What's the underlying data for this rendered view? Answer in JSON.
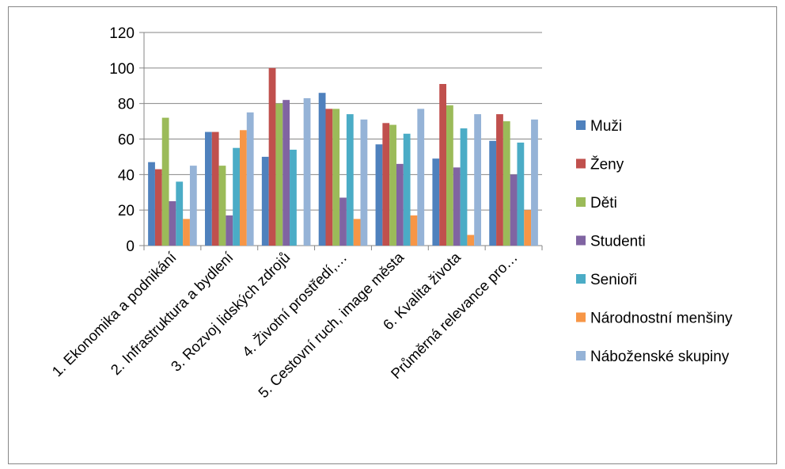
{
  "chart_data": {
    "type": "bar",
    "categories": [
      "1. Ekonomika a podnikání",
      "2. Infrastruktura a bydlení",
      "3. Rozvoj lidských zdrojů",
      "4. Životní prostředí,…",
      "5. Cestovní ruch, image města",
      "6. Kvalita života",
      "Průměrná relevance pro…"
    ],
    "series": [
      {
        "name": "Muži",
        "color": "#4F81BD",
        "values": [
          47,
          64,
          50,
          86,
          57,
          49,
          59
        ]
      },
      {
        "name": "Ženy",
        "color": "#C0504D",
        "values": [
          43,
          64,
          100,
          77,
          69,
          91,
          74
        ]
      },
      {
        "name": "Děti",
        "color": "#9BBB59",
        "values": [
          72,
          45,
          80,
          77,
          68,
          79,
          70
        ]
      },
      {
        "name": "Studenti",
        "color": "#8064A2",
        "values": [
          25,
          17,
          82,
          27,
          46,
          44,
          40
        ]
      },
      {
        "name": "Senioři",
        "color": "#4BACC6",
        "values": [
          36,
          55,
          54,
          74,
          63,
          66,
          58
        ]
      },
      {
        "name": "Národnostní menšiny",
        "color": "#F79646",
        "values": [
          15,
          65,
          0,
          15,
          17,
          6,
          20
        ]
      },
      {
        "name": "Náboženské skupiny",
        "color": "#95B3D7",
        "values": [
          45,
          75,
          83,
          71,
          77,
          74,
          71
        ]
      }
    ],
    "yticks": [
      "0",
      "20",
      "40",
      "60",
      "80",
      "100",
      "120"
    ],
    "ylim": [
      0,
      120
    ],
    "grid": true,
    "legend_position": "right",
    "title": "",
    "xlabel": "",
    "ylabel": ""
  }
}
